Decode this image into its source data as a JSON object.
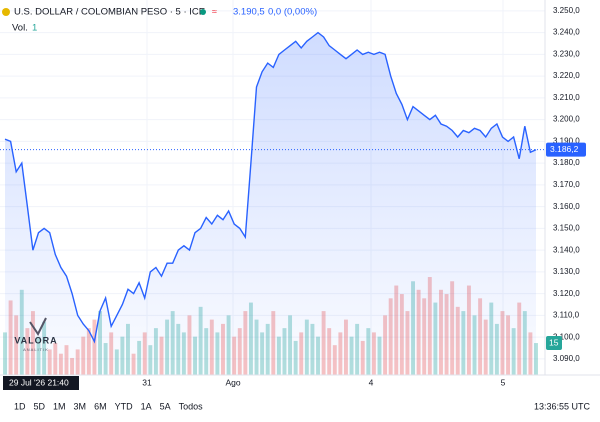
{
  "header": {
    "title": "U.S. DOLLAR / COLOMBIAN PESO · 5 · ICE",
    "price": "3.190,5",
    "change": "0,0 (0,00%)",
    "volume_label": "Vol.",
    "volume_value": "1"
  },
  "logo": {
    "name": "VALORA",
    "tagline": "ANALITIK"
  },
  "chart_data": {
    "type": "line",
    "ylim": [
      3082.6,
      3255
    ],
    "yticks": [
      {
        "value": 3090,
        "label": "3.090,0"
      },
      {
        "value": 3100,
        "label": "3.100,0"
      },
      {
        "value": 3110,
        "label": "3.110,0"
      },
      {
        "value": 3120,
        "label": "3.120,0"
      },
      {
        "value": 3130,
        "label": "3.130,0"
      },
      {
        "value": 3140,
        "label": "3.140,0"
      },
      {
        "value": 3150,
        "label": "3.150,0"
      },
      {
        "value": 3160,
        "label": "3.160,0"
      },
      {
        "value": 3170,
        "label": "3.170,0"
      },
      {
        "value": 3180,
        "label": "3.180,0"
      },
      {
        "value": 3190,
        "label": "3.190,0"
      },
      {
        "value": 3200,
        "label": "3.200,0"
      },
      {
        "value": 3210,
        "label": "3.210,0"
      },
      {
        "value": 3220,
        "label": "3.220,0"
      },
      {
        "value": 3230,
        "label": "3.230,0"
      },
      {
        "value": 3240,
        "label": "3.240,0"
      },
      {
        "value": 3250,
        "label": "3.250,0"
      }
    ],
    "x_labels": [
      "31",
      "Ago",
      "4",
      "5"
    ],
    "crosshair_label": "29 Jul '26 21:40",
    "grid": true,
    "series": [
      {
        "name": "USD/COP",
        "color": "#2962ff",
        "last_label": "3.186,2",
        "values": [
          3191,
          3190,
          3176,
          3180,
          3160,
          3140,
          3148,
          3150,
          3148,
          3138,
          3132,
          3128,
          3120,
          3110,
          3106,
          3103,
          3098,
          3112,
          3118,
          3105,
          3110,
          3115,
          3122,
          3120,
          3125,
          3118,
          3130,
          3132,
          3128,
          3134,
          3134,
          3140,
          3142,
          3140,
          3148,
          3150,
          3155,
          3152,
          3156,
          3154,
          3158,
          3152,
          3150,
          3146,
          3180,
          3215,
          3222,
          3226,
          3224,
          3230,
          3232,
          3234,
          3236,
          3233,
          3236,
          3238,
          3240,
          3238,
          3234,
          3232,
          3230,
          3228,
          3230,
          3232,
          3230,
          3231,
          3230,
          3231,
          3230,
          3220,
          3212,
          3207,
          3200,
          3206,
          3204,
          3202,
          3200,
          3202,
          3198,
          3197,
          3195,
          3192,
          3195,
          3194,
          3196,
          3195,
          3192,
          3196,
          3198,
          3192,
          3190,
          3192,
          3182,
          3197,
          3185,
          3186.2
        ]
      },
      {
        "name": "Vol.",
        "color": "#26a69a",
        "down_color": "#ef5350",
        "axis": "volume",
        "lim": [
          0,
          100
        ],
        "values": [
          20,
          35,
          28,
          40,
          22,
          30,
          18,
          25,
          12,
          15,
          10,
          14,
          8,
          12,
          18,
          22,
          26,
          30,
          15,
          20,
          12,
          18,
          24,
          10,
          16,
          20,
          14,
          22,
          18,
          26,
          30,
          24,
          20,
          28,
          18,
          32,
          22,
          26,
          20,
          24,
          28,
          18,
          22,
          30,
          34,
          26,
          20,
          24,
          30,
          18,
          22,
          28,
          16,
          20,
          26,
          24,
          18,
          30,
          22,
          14,
          20,
          26,
          18,
          24,
          16,
          22,
          20,
          18,
          28,
          36,
          42,
          38,
          30,
          44,
          40,
          36,
          46,
          34,
          40,
          38,
          44,
          32,
          30,
          42,
          28,
          36,
          26,
          34,
          24,
          30,
          28,
          22,
          34,
          30,
          20,
          15
        ]
      }
    ]
  },
  "footer": {
    "ranges": [
      "1D",
      "5D",
      "1M",
      "3M",
      "6M",
      "YTD",
      "1A",
      "5A",
      "Todos"
    ],
    "time": "13:36:55 UTC"
  }
}
